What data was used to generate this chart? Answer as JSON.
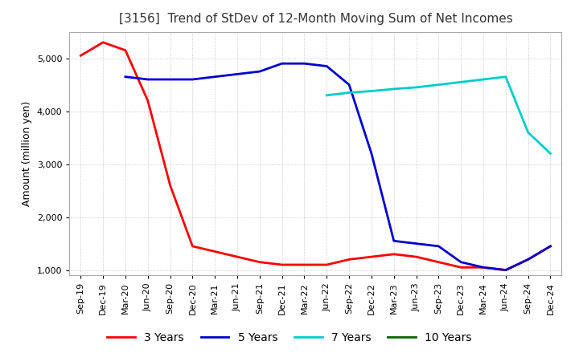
{
  "title": "[3156]  Trend of StDev of 12-Month Moving Sum of Net Incomes",
  "ylabel": "Amount (million yen)",
  "ylim": [
    900,
    5500
  ],
  "yticks": [
    1000,
    2000,
    3000,
    4000,
    5000
  ],
  "background_color": "#ffffff",
  "grid_color": "#bbbbbb",
  "x_labels": [
    "Sep-19",
    "Dec-19",
    "Mar-20",
    "Jun-20",
    "Sep-20",
    "Dec-20",
    "Mar-21",
    "Jun-21",
    "Sep-21",
    "Dec-21",
    "Mar-22",
    "Jun-22",
    "Sep-22",
    "Dec-22",
    "Mar-23",
    "Jun-23",
    "Sep-23",
    "Dec-23",
    "Mar-24",
    "Jun-24",
    "Sep-24",
    "Dec-24"
  ],
  "series": {
    "3 Years": {
      "color": "#ff0000",
      "data": [
        5050,
        5300,
        5150,
        4200,
        2600,
        1450,
        1350,
        1250,
        1150,
        1100,
        1100,
        1100,
        1200,
        1250,
        1300,
        1250,
        1150,
        1050,
        1050,
        1000,
        1200,
        1450
      ]
    },
    "5 Years": {
      "color": "#0000cc",
      "data": [
        null,
        null,
        4650,
        4600,
        4600,
        4600,
        4650,
        4700,
        4750,
        4900,
        4900,
        4850,
        4500,
        3200,
        1550,
        1500,
        1450,
        1150,
        1050,
        1000,
        1200,
        1450
      ]
    },
    "7 Years": {
      "color": "#00cccc",
      "data": [
        null,
        null,
        null,
        null,
        null,
        null,
        null,
        null,
        null,
        null,
        null,
        4300,
        4350,
        4380,
        4420,
        4450,
        4500,
        4550,
        4600,
        4650,
        3600,
        3200
      ]
    },
    "10 Years": {
      "color": "#006600",
      "data": [
        null,
        null,
        null,
        null,
        null,
        null,
        null,
        null,
        null,
        null,
        null,
        null,
        null,
        null,
        null,
        null,
        null,
        null,
        null,
        null,
        null,
        null
      ]
    }
  },
  "legend_order": [
    "3 Years",
    "5 Years",
    "7 Years",
    "10 Years"
  ],
  "title_fontsize": 11,
  "axis_fontsize": 9,
  "tick_fontsize": 8
}
